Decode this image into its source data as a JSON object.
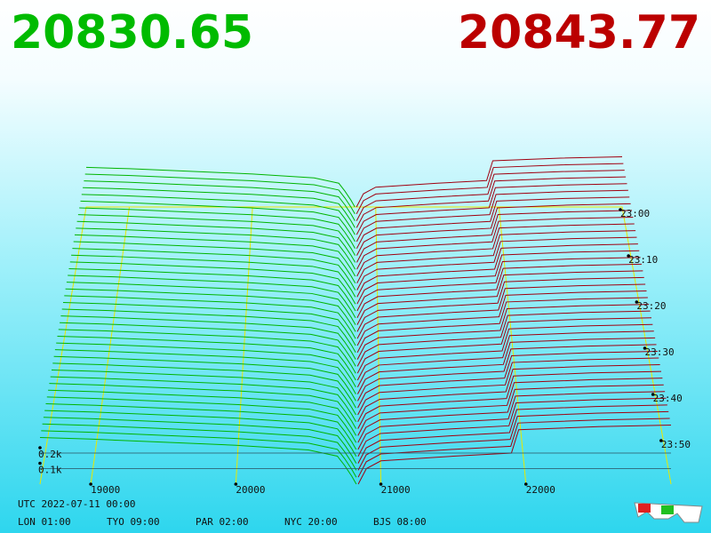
{
  "chart_data": {
    "type": "depth",
    "bid_price": 20830.65,
    "ask_price": 20843.77,
    "bids": {
      "color": "#00b400",
      "x": [
        20830.65,
        20800,
        20750,
        20700,
        20600,
        20500,
        20000,
        19500,
        19000,
        18650
      ],
      "values": [
        0,
        0.05,
        0.12,
        0.18,
        0.2,
        0.22,
        0.25,
        0.27,
        0.29,
        0.3
      ]
    },
    "asks": {
      "color": "#a00010",
      "x": [
        20843.77,
        20900,
        21000,
        21500,
        21900,
        21950,
        22500,
        23000
      ],
      "values": [
        0,
        0.1,
        0.15,
        0.18,
        0.2,
        0.35,
        0.37,
        0.38
      ]
    },
    "xlim": [
      18650,
      23000
    ],
    "xticks": [
      19000,
      20000,
      21000,
      22000
    ],
    "ylim": [
      0,
      1
    ],
    "yticks": [
      {
        "value": 0.1,
        "label": "0.1k"
      },
      {
        "value": 0.2,
        "label": "0.2k"
      }
    ],
    "timeticks": [
      "23:00",
      "23:10",
      "23:20",
      "23:30",
      "23:40",
      "23:50"
    ],
    "date": "UTC 2022-07-11 00:00",
    "zones": [
      "LON 01:00",
      "TYO 09:00",
      "PAR 02:00",
      "NYC 20:00",
      "BJS 08:00"
    ]
  }
}
